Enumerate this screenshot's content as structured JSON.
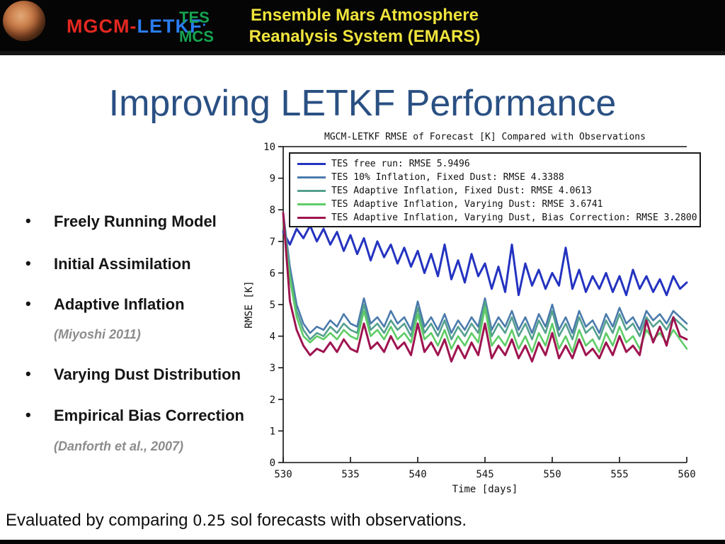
{
  "header": {
    "logo_mgcm": "MGCM",
    "logo_dash": "-",
    "logo_letkf": "LETKF",
    "logo_dot": "·",
    "tes": "TES",
    "mcs": "MCS",
    "title_line1": "Ensemble Mars Atmosphere",
    "title_line2": "Reanalysis System (EMARS)",
    "colors": {
      "mgcm_red": "#e42820",
      "letkf_blue": "#2a7cf0",
      "tes_green": "#16a451",
      "emars_yellow": "#f0e43c"
    }
  },
  "slide": {
    "title": "Improving LETKF Performance",
    "title_color": "#2a5083",
    "bullets": [
      {
        "text": "Freely Running Model",
        "type": "main"
      },
      {
        "text": "Initial Assimilation",
        "type": "main"
      },
      {
        "text": "Adaptive Inflation",
        "type": "main"
      },
      {
        "text": "(Miyoshi 2011)",
        "type": "note"
      },
      {
        "text": "Varying Dust Distribution",
        "type": "main"
      },
      {
        "text": "Empirical Bias Correction",
        "type": "main"
      },
      {
        "text": "(Danforth et al., 2007)",
        "type": "note"
      }
    ],
    "caption": {
      "prefix": "Evaluated by comparing ",
      "value": "0.25",
      "suffix": " sol forecasts with observations."
    }
  },
  "chart_data": {
    "type": "line",
    "title": "MGCM-LETKF RMSE of Forecast [K] Compared with Observations",
    "xlabel": "Time [days]",
    "ylabel": "RMSE [K]",
    "xlim": [
      530,
      560
    ],
    "ylim": [
      0,
      10
    ],
    "x_ticks": [
      530,
      535,
      540,
      545,
      550,
      555,
      560
    ],
    "y_ticks": [
      0,
      1,
      2,
      3,
      4,
      5,
      6,
      7,
      8,
      9,
      10
    ],
    "grid": false,
    "legend_position": "top-inside",
    "x_start": 530,
    "x_step": 0.5,
    "series": [
      {
        "name": "TES free run",
        "label": "TES free run: RMSE 5.9496",
        "rmse": 5.9496,
        "color": "#2433c0",
        "values": [
          7.3,
          6.9,
          7.4,
          7.1,
          7.5,
          7.0,
          7.4,
          6.9,
          7.3,
          6.7,
          7.2,
          6.6,
          7.1,
          6.4,
          7.0,
          6.5,
          6.9,
          6.3,
          6.8,
          6.2,
          6.7,
          6.0,
          6.6,
          5.9,
          6.9,
          5.8,
          6.4,
          5.7,
          6.6,
          5.9,
          6.3,
          5.5,
          6.2,
          5.4,
          6.9,
          5.3,
          6.3,
          5.6,
          6.1,
          5.5,
          6.0,
          5.6,
          6.8,
          5.5,
          6.1,
          5.4,
          5.9,
          5.5,
          6.0,
          5.4,
          5.9,
          5.3,
          6.1,
          5.5,
          5.9,
          5.4,
          5.8,
          5.3,
          5.9,
          5.5,
          5.7
        ]
      },
      {
        "name": "TES 10% Inflation, Fixed Dust",
        "label": "TES 10% Inflation, Fixed Dust: RMSE 4.3388",
        "rmse": 4.3388,
        "color": "#4a7aab",
        "values": [
          7.9,
          6.2,
          5.0,
          4.4,
          4.1,
          4.3,
          4.2,
          4.5,
          4.3,
          4.7,
          4.4,
          4.3,
          5.2,
          4.4,
          4.6,
          4.3,
          4.8,
          4.4,
          4.6,
          4.2,
          5.1,
          4.3,
          4.6,
          4.2,
          4.7,
          4.1,
          4.5,
          4.2,
          4.6,
          4.3,
          5.2,
          4.2,
          4.6,
          4.3,
          4.8,
          4.2,
          4.6,
          4.1,
          4.7,
          4.3,
          5.0,
          4.2,
          4.6,
          4.1,
          4.8,
          4.3,
          4.5,
          4.1,
          4.7,
          4.3,
          4.9,
          4.4,
          4.6,
          4.2,
          4.8,
          4.5,
          4.7,
          4.4,
          4.8,
          4.6,
          4.4
        ]
      },
      {
        "name": "TES Adaptive Inflation, Fixed Dust",
        "label": "TES Adaptive Inflation, Fixed Dust: RMSE 4.0613",
        "rmse": 4.0613,
        "color": "#54a08e",
        "values": [
          7.8,
          6.0,
          4.8,
          4.2,
          3.9,
          4.1,
          4.0,
          4.3,
          4.1,
          4.4,
          4.2,
          4.1,
          5.0,
          4.2,
          4.4,
          4.1,
          4.5,
          4.2,
          4.4,
          4.0,
          4.9,
          4.1,
          4.4,
          4.0,
          4.5,
          3.9,
          4.3,
          4.0,
          4.4,
          4.1,
          5.1,
          4.0,
          4.4,
          4.1,
          4.6,
          4.0,
          4.4,
          3.9,
          4.5,
          4.1,
          4.8,
          4.0,
          4.4,
          3.9,
          4.6,
          4.1,
          4.3,
          3.9,
          4.5,
          4.1,
          4.7,
          4.2,
          4.4,
          4.0,
          4.6,
          4.3,
          4.5,
          4.2,
          4.6,
          4.4,
          4.2
        ]
      },
      {
        "name": "TES Adaptive Inflation, Varying Dust",
        "label": "TES Adaptive Inflation, Varying Dust: RMSE 3.6741",
        "rmse": 3.6741,
        "color": "#5ecc66",
        "values": [
          7.6,
          5.8,
          4.6,
          4.0,
          3.8,
          4.0,
          3.9,
          4.1,
          3.9,
          4.2,
          4.0,
          3.9,
          4.8,
          4.0,
          4.2,
          3.9,
          4.3,
          3.9,
          4.1,
          3.8,
          4.7,
          3.9,
          4.1,
          3.7,
          4.2,
          3.6,
          4.0,
          3.7,
          4.1,
          3.8,
          4.9,
          3.7,
          4.0,
          3.7,
          4.2,
          3.6,
          4.0,
          3.5,
          4.1,
          3.7,
          4.4,
          3.6,
          4.0,
          3.5,
          4.2,
          3.7,
          3.9,
          3.5,
          4.1,
          3.7,
          4.3,
          3.8,
          4.0,
          3.6,
          4.2,
          3.9,
          4.1,
          3.8,
          4.2,
          3.9,
          3.6
        ]
      },
      {
        "name": "TES Adaptive Inflation, Varying Dust, Bias Correction",
        "label": "TES Adaptive Inflation, Varying Dust, Bias Correction: RMSE 3.2800",
        "rmse": 3.28,
        "color": "#9e1450",
        "values": [
          7.9,
          5.1,
          4.2,
          3.7,
          3.4,
          3.6,
          3.5,
          3.8,
          3.5,
          3.9,
          3.6,
          3.5,
          4.4,
          3.6,
          3.8,
          3.5,
          4.0,
          3.6,
          3.8,
          3.4,
          4.4,
          3.5,
          3.8,
          3.4,
          3.9,
          3.2,
          3.7,
          3.3,
          3.8,
          3.4,
          4.4,
          3.3,
          3.7,
          3.4,
          3.9,
          3.3,
          3.7,
          3.2,
          3.8,
          3.4,
          4.1,
          3.3,
          3.7,
          3.3,
          3.9,
          3.4,
          3.6,
          3.3,
          3.8,
          3.4,
          4.0,
          3.5,
          3.7,
          3.4,
          4.5,
          3.8,
          4.3,
          3.7,
          4.6,
          4.0,
          3.9
        ]
      }
    ]
  }
}
